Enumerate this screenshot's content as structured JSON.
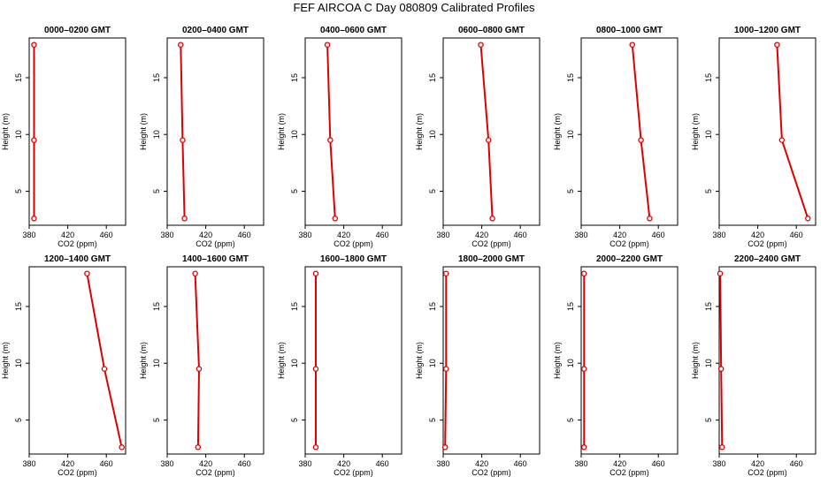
{
  "figure": {
    "title": "FEF AIRCOA C  Day 080809  Calibrated Profiles"
  },
  "colors": {
    "series": "#dd0000",
    "axis": "#000000",
    "background": "#ffffff"
  },
  "chart_data": [
    {
      "type": "line",
      "title": "0000–0200 GMT",
      "xlabel": "CO2 (ppm)",
      "ylabel": "Height (m)",
      "xlim": [
        380,
        480
      ],
      "ylim": [
        2,
        18.5
      ],
      "xticks": [
        380,
        420,
        460
      ],
      "yticks": [
        5,
        10,
        15
      ],
      "grid": false,
      "series": [
        {
          "x": [
            385,
            385,
            385
          ],
          "y": [
            2.6,
            9.5,
            17.9
          ]
        }
      ]
    },
    {
      "type": "line",
      "title": "0200–0400 GMT",
      "xlabel": "CO2 (ppm)",
      "ylabel": "Height (m)",
      "xlim": [
        380,
        480
      ],
      "ylim": [
        2,
        18.5
      ],
      "xticks": [
        380,
        420,
        460
      ],
      "yticks": [
        5,
        10,
        15
      ],
      "grid": false,
      "series": [
        {
          "x": [
            398,
            396,
            394
          ],
          "y": [
            2.6,
            9.5,
            17.9
          ]
        }
      ]
    },
    {
      "type": "line",
      "title": "0400–0600 GMT",
      "xlabel": "CO2 (ppm)",
      "ylabel": "Height (m)",
      "xlim": [
        380,
        480
      ],
      "ylim": [
        2,
        18.5
      ],
      "xticks": [
        380,
        420,
        460
      ],
      "yticks": [
        5,
        10,
        15
      ],
      "grid": false,
      "series": [
        {
          "x": [
            411,
            406,
            403
          ],
          "y": [
            2.6,
            9.5,
            17.9
          ]
        }
      ]
    },
    {
      "type": "line",
      "title": "0600–0800 GMT",
      "xlabel": "CO2 (ppm)",
      "ylabel": "Height (m)",
      "xlim": [
        380,
        480
      ],
      "ylim": [
        2,
        18.5
      ],
      "xticks": [
        380,
        420,
        460
      ],
      "yticks": [
        5,
        10,
        15
      ],
      "grid": false,
      "series": [
        {
          "x": [
            431,
            427,
            419
          ],
          "y": [
            2.6,
            9.5,
            17.9
          ]
        }
      ]
    },
    {
      "type": "line",
      "title": "0800–1000 GMT",
      "xlabel": "CO2 (ppm)",
      "ylabel": "Height (m)",
      "xlim": [
        380,
        480
      ],
      "ylim": [
        2,
        18.5
      ],
      "xticks": [
        380,
        420,
        460
      ],
      "yticks": [
        5,
        10,
        15
      ],
      "grid": false,
      "series": [
        {
          "x": [
            451,
            442,
            433
          ],
          "y": [
            2.6,
            9.5,
            17.9
          ]
        }
      ]
    },
    {
      "type": "line",
      "title": "1000–1200 GMT",
      "xlabel": "CO2 (ppm)",
      "ylabel": "Height (m)",
      "xlim": [
        380,
        480
      ],
      "ylim": [
        2,
        18.5
      ],
      "xticks": [
        380,
        420,
        460
      ],
      "yticks": [
        5,
        10,
        15
      ],
      "grid": false,
      "series": [
        {
          "x": [
            472,
            445,
            440
          ],
          "y": [
            2.6,
            9.5,
            17.9
          ]
        }
      ]
    },
    {
      "type": "line",
      "title": "1200–1400 GMT",
      "xlabel": "CO2 (ppm)",
      "ylabel": "Height (m)",
      "xlim": [
        380,
        480
      ],
      "ylim": [
        2,
        18.5
      ],
      "xticks": [
        380,
        420,
        460
      ],
      "yticks": [
        5,
        10,
        15
      ],
      "grid": false,
      "series": [
        {
          "x": [
            476,
            458,
            440
          ],
          "y": [
            2.6,
            9.5,
            17.9
          ]
        }
      ]
    },
    {
      "type": "line",
      "title": "1400–1600 GMT",
      "xlabel": "CO2 (ppm)",
      "ylabel": "Height (m)",
      "xlim": [
        380,
        480
      ],
      "ylim": [
        2,
        18.5
      ],
      "xticks": [
        380,
        420,
        460
      ],
      "yticks": [
        5,
        10,
        15
      ],
      "grid": false,
      "series": [
        {
          "x": [
            412,
            413,
            409
          ],
          "y": [
            2.6,
            9.5,
            17.9
          ]
        }
      ]
    },
    {
      "type": "line",
      "title": "1600–1800 GMT",
      "xlabel": "CO2 (ppm)",
      "ylabel": "Height (m)",
      "xlim": [
        380,
        480
      ],
      "ylim": [
        2,
        18.5
      ],
      "xticks": [
        380,
        420,
        460
      ],
      "yticks": [
        5,
        10,
        15
      ],
      "grid": false,
      "series": [
        {
          "x": [
            391,
            391,
            391
          ],
          "y": [
            2.6,
            9.5,
            17.9
          ]
        }
      ]
    },
    {
      "type": "line",
      "title": "1800–2000 GMT",
      "xlabel": "CO2 (ppm)",
      "ylabel": "Height (m)",
      "xlim": [
        380,
        480
      ],
      "ylim": [
        2,
        18.5
      ],
      "xticks": [
        380,
        420,
        460
      ],
      "yticks": [
        5,
        10,
        15
      ],
      "grid": false,
      "series": [
        {
          "x": [
            382,
            383,
            383
          ],
          "y": [
            2.6,
            9.5,
            17.9
          ]
        }
      ]
    },
    {
      "type": "line",
      "title": "2000–2200 GMT",
      "xlabel": "CO2 (ppm)",
      "ylabel": "Height (m)",
      "xlim": [
        380,
        480
      ],
      "ylim": [
        2,
        18.5
      ],
      "xticks": [
        380,
        420,
        460
      ],
      "yticks": [
        5,
        10,
        15
      ],
      "grid": false,
      "series": [
        {
          "x": [
            383,
            383,
            383
          ],
          "y": [
            2.6,
            9.5,
            17.9
          ]
        }
      ]
    },
    {
      "type": "line",
      "title": "2200–2400 GMT",
      "xlabel": "CO2 (ppm)",
      "ylabel": "Height (m)",
      "xlim": [
        380,
        480
      ],
      "ylim": [
        2,
        18.5
      ],
      "xticks": [
        380,
        420,
        460
      ],
      "yticks": [
        5,
        10,
        15
      ],
      "grid": false,
      "series": [
        {
          "x": [
            383,
            382,
            381
          ],
          "y": [
            2.6,
            9.5,
            17.9
          ]
        }
      ]
    }
  ]
}
